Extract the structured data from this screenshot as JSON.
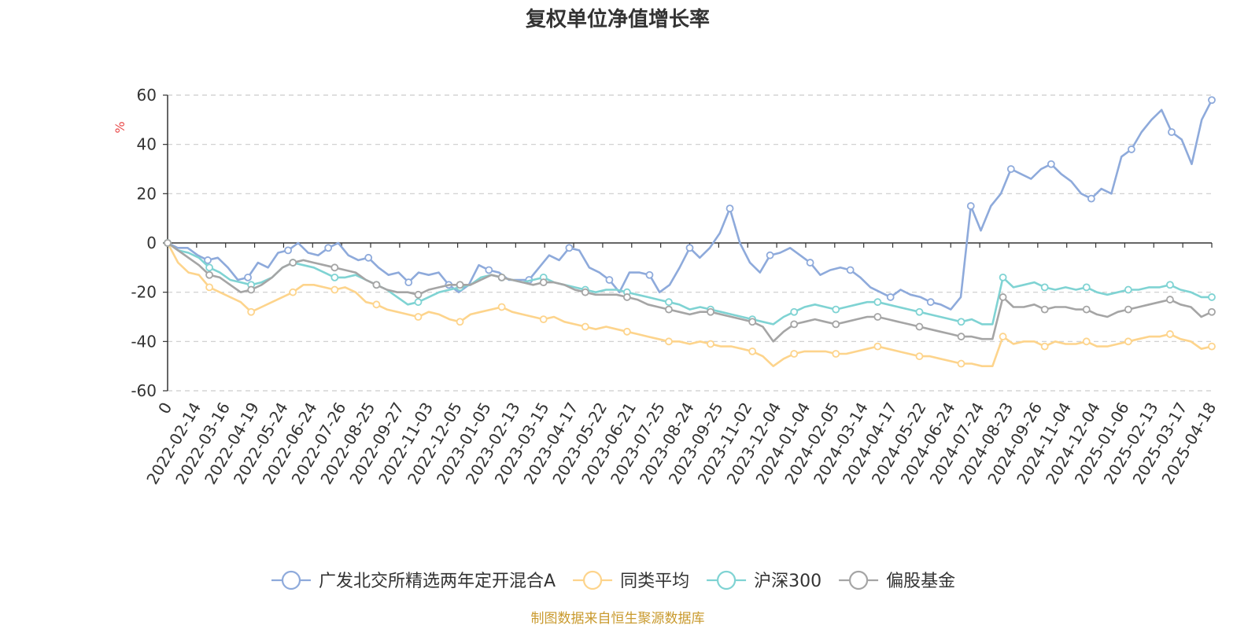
{
  "chart_data": {
    "type": "line",
    "title": "复权单位净值增长率",
    "ylabel": "%",
    "ylim": [
      -60,
      60
    ],
    "yticks": [
      -60,
      -40,
      -20,
      0,
      20,
      40,
      60
    ],
    "grid": true,
    "legend_position": "bottom",
    "x_tick_labels": [
      "0",
      "2022-02-14",
      "2022-03-16",
      "2022-04-19",
      "2022-05-24",
      "2022-06-24",
      "2022-07-26",
      "2022-08-25",
      "2022-09-27",
      "2022-11-03",
      "2022-12-05",
      "2023-01-05",
      "2023-02-13",
      "2023-03-15",
      "2023-04-17",
      "2023-05-22",
      "2023-06-21",
      "2023-07-25",
      "2023-08-24",
      "2023-09-25",
      "2023-11-02",
      "2023-12-04",
      "2024-01-04",
      "2024-02-05",
      "2024-03-14",
      "2024-04-17",
      "2024-05-22",
      "2024-06-24",
      "2024-07-24",
      "2024-08-23",
      "2024-09-26",
      "2024-11-04",
      "2024-12-04",
      "2025-01-06",
      "2025-02-13",
      "2025-03-17",
      "2025-04-18"
    ],
    "series": [
      {
        "name": "广发北交所精选两年定开混合A",
        "color": "#8eaadb",
        "values": [
          0,
          -2,
          -2,
          -5,
          -7,
          -6,
          -10,
          -15,
          -14,
          -8,
          -10,
          -4,
          -3,
          0,
          -4,
          -5,
          -2,
          0,
          -5,
          -7,
          -6,
          -10,
          -13,
          -12,
          -16,
          -12,
          -13,
          -12,
          -17,
          -20,
          -17,
          -9,
          -11,
          -12,
          -15,
          -15,
          -15,
          -10,
          -5,
          -7,
          -2,
          -3,
          -10,
          -12,
          -15,
          -20,
          -12,
          -12,
          -13,
          -20,
          -17,
          -10,
          -2,
          -6,
          -2,
          4,
          14,
          0,
          -8,
          -12,
          -5,
          -4,
          -2,
          -5,
          -8,
          -13,
          -11,
          -10,
          -11,
          -14,
          -18,
          -20,
          -22,
          -19,
          -21,
          -22,
          -24,
          -25,
          -27,
          -22,
          15,
          5,
          15,
          20,
          30,
          28,
          26,
          30,
          32,
          28,
          25,
          20,
          18,
          22,
          20,
          35,
          38,
          45,
          50,
          54,
          45,
          42,
          32,
          50,
          58
        ]
      },
      {
        "name": "同类平均",
        "color": "#fdd48c",
        "values": [
          0,
          -8,
          -12,
          -13,
          -18,
          -20,
          -22,
          -24,
          -28,
          -26,
          -24,
          -22,
          -20,
          -17,
          -17,
          -18,
          -19,
          -18,
          -20,
          -24,
          -25,
          -27,
          -28,
          -29,
          -30,
          -28,
          -29,
          -31,
          -32,
          -29,
          -28,
          -27,
          -26,
          -28,
          -29,
          -30,
          -31,
          -30,
          -32,
          -33,
          -34,
          -35,
          -34,
          -35,
          -36,
          -37,
          -38,
          -39,
          -40,
          -40,
          -41,
          -40,
          -41,
          -42,
          -42,
          -43,
          -44,
          -46,
          -50,
          -47,
          -45,
          -44,
          -44,
          -44,
          -45,
          -45,
          -44,
          -43,
          -42,
          -43,
          -44,
          -45,
          -46,
          -46,
          -47,
          -48,
          -49,
          -49,
          -50,
          -50,
          -38,
          -41,
          -40,
          -40,
          -42,
          -40,
          -41,
          -41,
          -40,
          -42,
          -42,
          -41,
          -40,
          -39,
          -38,
          -38,
          -37,
          -39,
          -40,
          -43,
          -42
        ]
      },
      {
        "name": "沪深300",
        "color": "#7fd3d3",
        "values": [
          0,
          -3,
          -4,
          -6,
          -10,
          -12,
          -15,
          -16,
          -17,
          -16,
          -14,
          -10,
          -8,
          -9,
          -10,
          -12,
          -14,
          -14,
          -13,
          -15,
          -17,
          -19,
          -22,
          -25,
          -24,
          -22,
          -20,
          -19,
          -18,
          -17,
          -14,
          -13,
          -14,
          -15,
          -16,
          -15,
          -14,
          -16,
          -17,
          -18,
          -19,
          -20,
          -19,
          -19,
          -20,
          -21,
          -22,
          -23,
          -24,
          -25,
          -27,
          -26,
          -27,
          -28,
          -29,
          -30,
          -31,
          -32,
          -33,
          -30,
          -28,
          -26,
          -25,
          -26,
          -27,
          -26,
          -25,
          -24,
          -24,
          -25,
          -26,
          -27,
          -28,
          -29,
          -30,
          -31,
          -32,
          -31,
          -33,
          -33,
          -14,
          -18,
          -17,
          -16,
          -18,
          -19,
          -18,
          -19,
          -18,
          -20,
          -21,
          -20,
          -19,
          -19,
          -18,
          -18,
          -17,
          -19,
          -20,
          -22,
          -22
        ]
      },
      {
        "name": "偏股基金",
        "color": "#a5a5a5",
        "values": [
          0,
          -3,
          -6,
          -9,
          -13,
          -14,
          -17,
          -20,
          -19,
          -17,
          -14,
          -10,
          -8,
          -7,
          -8,
          -9,
          -10,
          -11,
          -12,
          -15,
          -17,
          -19,
          -20,
          -20,
          -21,
          -19,
          -18,
          -17,
          -17,
          -17,
          -15,
          -13,
          -14,
          -15,
          -16,
          -17,
          -16,
          -16,
          -17,
          -19,
          -20,
          -21,
          -21,
          -21,
          -22,
          -23,
          -25,
          -26,
          -27,
          -28,
          -29,
          -28,
          -28,
          -29,
          -30,
          -31,
          -32,
          -34,
          -40,
          -36,
          -33,
          -32,
          -31,
          -32,
          -33,
          -32,
          -31,
          -30,
          -30,
          -31,
          -32,
          -33,
          -34,
          -35,
          -36,
          -37,
          -38,
          -38,
          -39,
          -39,
          -22,
          -26,
          -26,
          -25,
          -27,
          -26,
          -26,
          -27,
          -27,
          -29,
          -30,
          -28,
          -27,
          -26,
          -25,
          -24,
          -23,
          -25,
          -26,
          -30,
          -28
        ]
      }
    ]
  },
  "source_note": "制图数据来自恒生聚源数据库",
  "colors": {
    "axis": "#333333",
    "grid": "#cccccc",
    "unit": "#e84a4a",
    "source": "#c99a2e"
  }
}
